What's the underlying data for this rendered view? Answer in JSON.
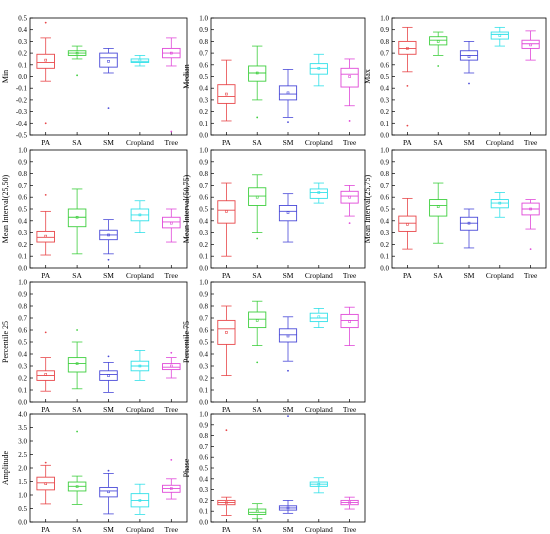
{
  "figure": {
    "colors": {
      "PA": "#e8474a",
      "SA": "#3fcf3f",
      "SM": "#4a4ad8",
      "Cropland": "#30e0e8",
      "Tree": "#e048d8"
    }
  },
  "chart_data": [
    {
      "type": "box",
      "ylabel": "Min",
      "ylim": [
        -0.5,
        0.5
      ],
      "yticks": [
        -0.5,
        -0.4,
        -0.3,
        -0.2,
        -0.1,
        0.0,
        0.1,
        0.2,
        0.3,
        0.4,
        0.5
      ],
      "ytick_labels": [
        "-0.5",
        "-0.4",
        "-0.3",
        "-0.2",
        "-0.1",
        "0.0",
        "0.1",
        "0.2",
        "0.3",
        "0.4",
        "0.5"
      ],
      "categories": [
        "PA",
        "SA",
        "SM",
        "Cropland",
        "Tree"
      ],
      "boxes": [
        {
          "q1": 0.07,
          "median": 0.12,
          "q3": 0.19,
          "mean": 0.14,
          "whisker_low": -0.04,
          "whisker_high": 0.33,
          "outliers": [
            0.46,
            -0.4
          ]
        },
        {
          "q1": 0.18,
          "median": 0.2,
          "q3": 0.22,
          "mean": 0.2,
          "whisker_low": 0.15,
          "whisker_high": 0.26,
          "outliers": [
            0.01
          ]
        },
        {
          "q1": 0.08,
          "median": 0.16,
          "q3": 0.2,
          "mean": 0.13,
          "whisker_low": 0.03,
          "whisker_high": 0.24,
          "outliers": [
            -0.27
          ]
        },
        {
          "q1": 0.12,
          "median": 0.13,
          "q3": 0.15,
          "mean": 0.14,
          "whisker_low": 0.09,
          "whisker_high": 0.18,
          "outliers": []
        },
        {
          "q1": 0.16,
          "median": 0.2,
          "q3": 0.24,
          "mean": 0.2,
          "whisker_low": 0.09,
          "whisker_high": 0.33,
          "outliers": [
            -0.47
          ]
        }
      ]
    },
    {
      "type": "box",
      "ylabel": "Median",
      "ylim": [
        0.0,
        1.0
      ],
      "yticks": [
        0.0,
        0.1,
        0.2,
        0.3,
        0.4,
        0.5,
        0.6,
        0.7,
        0.8,
        0.9,
        1.0
      ],
      "ytick_labels": [
        "0.0",
        "0.1",
        "0.2",
        "0.3",
        "0.4",
        "0.5",
        "0.6",
        "0.7",
        "0.8",
        "0.9",
        "1.0"
      ],
      "categories": [
        "PA",
        "SA",
        "SM",
        "Cropland",
        "Tree"
      ],
      "boxes": [
        {
          "q1": 0.27,
          "median": 0.33,
          "q3": 0.43,
          "mean": 0.35,
          "whisker_low": 0.12,
          "whisker_high": 0.64,
          "outliers": []
        },
        {
          "q1": 0.46,
          "median": 0.53,
          "q3": 0.59,
          "mean": 0.53,
          "whisker_low": 0.3,
          "whisker_high": 0.76,
          "outliers": [
            0.15
          ]
        },
        {
          "q1": 0.3,
          "median": 0.35,
          "q3": 0.42,
          "mean": 0.36,
          "whisker_low": 0.15,
          "whisker_high": 0.56,
          "outliers": [
            0.11
          ]
        },
        {
          "q1": 0.52,
          "median": 0.57,
          "q3": 0.61,
          "mean": 0.57,
          "whisker_low": 0.42,
          "whisker_high": 0.69,
          "outliers": []
        },
        {
          "q1": 0.41,
          "median": 0.52,
          "q3": 0.57,
          "mean": 0.5,
          "whisker_low": 0.25,
          "whisker_high": 0.65,
          "outliers": [
            0.12
          ]
        }
      ]
    },
    {
      "type": "box",
      "ylabel": "Max",
      "ylim": [
        0.0,
        1.0
      ],
      "yticks": [
        0.0,
        0.1,
        0.2,
        0.3,
        0.4,
        0.5,
        0.6,
        0.7,
        0.8,
        0.9,
        1.0
      ],
      "ytick_labels": [
        "0.0",
        "0.1",
        "0.2",
        "0.3",
        "0.4",
        "0.5",
        "0.6",
        "0.7",
        "0.8",
        "0.9",
        "1.0"
      ],
      "categories": [
        "PA",
        "SA",
        "SM",
        "Cropland",
        "Tree"
      ],
      "boxes": [
        {
          "q1": 0.69,
          "median": 0.74,
          "q3": 0.8,
          "mean": 0.74,
          "whisker_low": 0.54,
          "whisker_high": 0.92,
          "outliers": [
            0.42,
            0.08
          ]
        },
        {
          "q1": 0.77,
          "median": 0.81,
          "q3": 0.84,
          "mean": 0.8,
          "whisker_low": 0.68,
          "whisker_high": 0.88,
          "outliers": [
            0.59
          ]
        },
        {
          "q1": 0.64,
          "median": 0.68,
          "q3": 0.72,
          "mean": 0.67,
          "whisker_low": 0.53,
          "whisker_high": 0.8,
          "outliers": [
            0.44
          ]
        },
        {
          "q1": 0.82,
          "median": 0.86,
          "q3": 0.88,
          "mean": 0.85,
          "whisker_low": 0.76,
          "whisker_high": 0.92,
          "outliers": []
        },
        {
          "q1": 0.74,
          "median": 0.78,
          "q3": 0.81,
          "mean": 0.77,
          "whisker_low": 0.64,
          "whisker_high": 0.89,
          "outliers": []
        }
      ]
    },
    {
      "type": "box",
      "ylabel": "Mean Interval(25,50)",
      "ylim": [
        0.0,
        1.0
      ],
      "yticks": [
        0.0,
        0.1,
        0.2,
        0.3,
        0.4,
        0.5,
        0.6,
        0.7,
        0.8,
        0.9,
        1.0
      ],
      "ytick_labels": [
        "0.0",
        "0.1",
        "0.2",
        "0.3",
        "0.4",
        "0.5",
        "0.6",
        "0.7",
        "0.8",
        "0.9",
        "1.0"
      ],
      "categories": [
        "PA",
        "SA",
        "SM",
        "Cropland",
        "Tree"
      ],
      "boxes": [
        {
          "q1": 0.22,
          "median": 0.26,
          "q3": 0.31,
          "mean": 0.27,
          "whisker_low": 0.11,
          "whisker_high": 0.48,
          "outliers": [
            0.62
          ]
        },
        {
          "q1": 0.35,
          "median": 0.43,
          "q3": 0.5,
          "mean": 0.43,
          "whisker_low": 0.12,
          "whisker_high": 0.67,
          "outliers": []
        },
        {
          "q1": 0.24,
          "median": 0.28,
          "q3": 0.32,
          "mean": 0.28,
          "whisker_low": 0.12,
          "whisker_high": 0.41,
          "outliers": [
            0.07
          ]
        },
        {
          "q1": 0.4,
          "median": 0.45,
          "q3": 0.5,
          "mean": 0.45,
          "whisker_low": 0.3,
          "whisker_high": 0.57,
          "outliers": []
        },
        {
          "q1": 0.34,
          "median": 0.39,
          "q3": 0.43,
          "mean": 0.38,
          "whisker_low": 0.22,
          "whisker_high": 0.5,
          "outliers": []
        }
      ]
    },
    {
      "type": "box",
      "ylabel": "Mean Interval(50,75)",
      "ylim": [
        0.0,
        1.0
      ],
      "yticks": [
        0.0,
        0.1,
        0.2,
        0.3,
        0.4,
        0.5,
        0.6,
        0.7,
        0.8,
        0.9,
        1.0
      ],
      "ytick_labels": [
        "0.0",
        "0.1",
        "0.2",
        "0.3",
        "0.4",
        "0.5",
        "0.6",
        "0.7",
        "0.8",
        "0.9",
        "1.0"
      ],
      "categories": [
        "PA",
        "SA",
        "SM",
        "Cropland",
        "Tree"
      ],
      "boxes": [
        {
          "q1": 0.38,
          "median": 0.49,
          "q3": 0.57,
          "mean": 0.48,
          "whisker_low": 0.1,
          "whisker_high": 0.72,
          "outliers": []
        },
        {
          "q1": 0.53,
          "median": 0.61,
          "q3": 0.68,
          "mean": 0.6,
          "whisker_low": 0.3,
          "whisker_high": 0.79,
          "outliers": [
            0.25
          ]
        },
        {
          "q1": 0.4,
          "median": 0.48,
          "q3": 0.53,
          "mean": 0.47,
          "whisker_low": 0.22,
          "whisker_high": 0.63,
          "outliers": []
        },
        {
          "q1": 0.59,
          "median": 0.64,
          "q3": 0.67,
          "mean": 0.64,
          "whisker_low": 0.55,
          "whisker_high": 0.72,
          "outliers": []
        },
        {
          "q1": 0.55,
          "median": 0.61,
          "q3": 0.65,
          "mean": 0.6,
          "whisker_low": 0.44,
          "whisker_high": 0.7,
          "outliers": [
            0.38
          ]
        }
      ]
    },
    {
      "type": "box",
      "ylabel": "Mean Interval(25,75)",
      "ylim": [
        0.0,
        1.0
      ],
      "yticks": [
        0.0,
        0.1,
        0.2,
        0.3,
        0.4,
        0.5,
        0.6,
        0.7,
        0.8,
        0.9,
        1.0
      ],
      "ytick_labels": [
        "0.0",
        "0.1",
        "0.2",
        "0.3",
        "0.4",
        "0.5",
        "0.6",
        "0.7",
        "0.8",
        "0.9",
        "1.0"
      ],
      "categories": [
        "PA",
        "SA",
        "SM",
        "Cropland",
        "Tree"
      ],
      "boxes": [
        {
          "q1": 0.31,
          "median": 0.38,
          "q3": 0.44,
          "mean": 0.37,
          "whisker_low": 0.16,
          "whisker_high": 0.59,
          "outliers": []
        },
        {
          "q1": 0.44,
          "median": 0.53,
          "q3": 0.58,
          "mean": 0.52,
          "whisker_low": 0.21,
          "whisker_high": 0.72,
          "outliers": []
        },
        {
          "q1": 0.32,
          "median": 0.38,
          "q3": 0.43,
          "mean": 0.38,
          "whisker_low": 0.17,
          "whisker_high": 0.5,
          "outliers": []
        },
        {
          "q1": 0.51,
          "median": 0.55,
          "q3": 0.58,
          "mean": 0.55,
          "whisker_low": 0.43,
          "whisker_high": 0.64,
          "outliers": []
        },
        {
          "q1": 0.45,
          "median": 0.5,
          "q3": 0.55,
          "mean": 0.5,
          "whisker_low": 0.33,
          "whisker_high": 0.58,
          "outliers": [
            0.16
          ]
        }
      ]
    },
    {
      "type": "box",
      "ylabel": "Percentile 25",
      "ylim": [
        0.0,
        1.0
      ],
      "yticks": [
        0.0,
        0.1,
        0.2,
        0.3,
        0.4,
        0.5,
        0.6,
        0.7,
        0.8,
        0.9,
        1.0
      ],
      "ytick_labels": [
        "0.0",
        "0.1",
        "0.2",
        "0.3",
        "0.4",
        "0.5",
        "0.6",
        "0.7",
        "0.8",
        "0.9",
        "1.0"
      ],
      "categories": [
        "PA",
        "SA",
        "SM",
        "Cropland",
        "Tree"
      ],
      "boxes": [
        {
          "q1": 0.18,
          "median": 0.22,
          "q3": 0.26,
          "mean": 0.23,
          "whisker_low": 0.09,
          "whisker_high": 0.37,
          "outliers": [
            0.58
          ]
        },
        {
          "q1": 0.25,
          "median": 0.32,
          "q3": 0.37,
          "mean": 0.32,
          "whisker_low": 0.11,
          "whisker_high": 0.5,
          "outliers": [
            0.6
          ]
        },
        {
          "q1": 0.18,
          "median": 0.23,
          "q3": 0.26,
          "mean": 0.22,
          "whisker_low": 0.08,
          "whisker_high": 0.33,
          "outliers": [
            0.38
          ]
        },
        {
          "q1": 0.26,
          "median": 0.3,
          "q3": 0.34,
          "mean": 0.3,
          "whisker_low": 0.18,
          "whisker_high": 0.43,
          "outliers": []
        },
        {
          "q1": 0.27,
          "median": 0.29,
          "q3": 0.32,
          "mean": 0.3,
          "whisker_low": 0.2,
          "whisker_high": 0.37,
          "outliers": [
            0.41
          ]
        }
      ]
    },
    {
      "type": "box",
      "ylabel": "Percentile 75",
      "ylim": [
        0.0,
        1.0
      ],
      "yticks": [
        0.0,
        0.1,
        0.2,
        0.3,
        0.4,
        0.5,
        0.6,
        0.7,
        0.8,
        0.9,
        1.0
      ],
      "ytick_labels": [
        "0.0",
        "0.1",
        "0.2",
        "0.3",
        "0.4",
        "0.5",
        "0.6",
        "0.7",
        "0.8",
        "0.9",
        "1.0"
      ],
      "categories": [
        "PA",
        "SA",
        "SM",
        "Cropland",
        "Tree"
      ],
      "boxes": [
        {
          "q1": 0.48,
          "median": 0.61,
          "q3": 0.68,
          "mean": 0.58,
          "whisker_low": 0.22,
          "whisker_high": 0.8,
          "outliers": []
        },
        {
          "q1": 0.62,
          "median": 0.69,
          "q3": 0.75,
          "mean": 0.68,
          "whisker_low": 0.47,
          "whisker_high": 0.84,
          "outliers": [
            0.33
          ]
        },
        {
          "q1": 0.5,
          "median": 0.56,
          "q3": 0.61,
          "mean": 0.55,
          "whisker_low": 0.34,
          "whisker_high": 0.71,
          "outliers": [
            0.26
          ]
        },
        {
          "q1": 0.67,
          "median": 0.7,
          "q3": 0.74,
          "mean": 0.71,
          "whisker_low": 0.62,
          "whisker_high": 0.78,
          "outliers": []
        },
        {
          "q1": 0.62,
          "median": 0.68,
          "q3": 0.73,
          "mean": 0.67,
          "whisker_low": 0.47,
          "whisker_high": 0.79,
          "outliers": []
        }
      ]
    },
    {
      "type": "box",
      "ylabel": "Amplitude",
      "ylim": [
        0.0,
        4.0
      ],
      "yticks": [
        0.0,
        0.5,
        1.0,
        1.5,
        2.0,
        2.5,
        3.0,
        3.5,
        4.0
      ],
      "ytick_labels": [
        "0.0",
        "0.5",
        "1.0",
        "1.5",
        "2.0",
        "2.5",
        "3.0",
        "3.5",
        "4.0"
      ],
      "categories": [
        "PA",
        "SA",
        "SM",
        "Cropland",
        "Tree"
      ],
      "boxes": [
        {
          "q1": 1.19,
          "median": 1.45,
          "q3": 1.66,
          "mean": 1.42,
          "whisker_low": 0.67,
          "whisker_high": 2.1,
          "outliers": [
            2.2
          ]
        },
        {
          "q1": 1.15,
          "median": 1.32,
          "q3": 1.48,
          "mean": 1.31,
          "whisker_low": 0.65,
          "whisker_high": 1.7,
          "outliers": [
            3.35
          ]
        },
        {
          "q1": 0.93,
          "median": 1.15,
          "q3": 1.28,
          "mean": 1.12,
          "whisker_low": 0.3,
          "whisker_high": 1.8,
          "outliers": [
            1.9
          ]
        },
        {
          "q1": 0.56,
          "median": 0.8,
          "q3": 1.05,
          "mean": 0.8,
          "whisker_low": 0.28,
          "whisker_high": 1.4,
          "outliers": []
        },
        {
          "q1": 1.1,
          "median": 1.24,
          "q3": 1.36,
          "mean": 1.24,
          "whisker_low": 0.85,
          "whisker_high": 1.6,
          "outliers": [
            2.3
          ]
        }
      ]
    },
    {
      "type": "box",
      "ylabel": "Phase",
      "ylim": [
        0.0,
        1.0
      ],
      "yticks": [
        0.0,
        0.1,
        0.2,
        0.3,
        0.4,
        0.5,
        0.6,
        0.7,
        0.8,
        0.9,
        1.0
      ],
      "ytick_labels": [
        "0.0",
        "0.1",
        "0.2",
        "0.3",
        "0.4",
        "0.5",
        "0.6",
        "0.7",
        "0.8",
        "0.9",
        "1.0"
      ],
      "categories": [
        "PA",
        "SA",
        "SM",
        "Cropland",
        "Tree"
      ],
      "boxes": [
        {
          "q1": 0.16,
          "median": 0.18,
          "q3": 0.2,
          "mean": 0.18,
          "whisker_low": 0.06,
          "whisker_high": 0.23,
          "outliers": [
            0.85
          ]
        },
        {
          "q1": 0.07,
          "median": 0.09,
          "q3": 0.12,
          "mean": 0.1,
          "whisker_low": 0.03,
          "whisker_high": 0.17,
          "outliers": []
        },
        {
          "q1": 0.11,
          "median": 0.13,
          "q3": 0.15,
          "mean": 0.13,
          "whisker_low": 0.08,
          "whisker_high": 0.2,
          "outliers": [
            0.98
          ]
        },
        {
          "q1": 0.33,
          "median": 0.35,
          "q3": 0.37,
          "mean": 0.35,
          "whisker_low": 0.27,
          "whisker_high": 0.41,
          "outliers": []
        },
        {
          "q1": 0.16,
          "median": 0.18,
          "q3": 0.2,
          "mean": 0.18,
          "whisker_low": 0.12,
          "whisker_high": 0.23,
          "outliers": []
        }
      ]
    }
  ]
}
